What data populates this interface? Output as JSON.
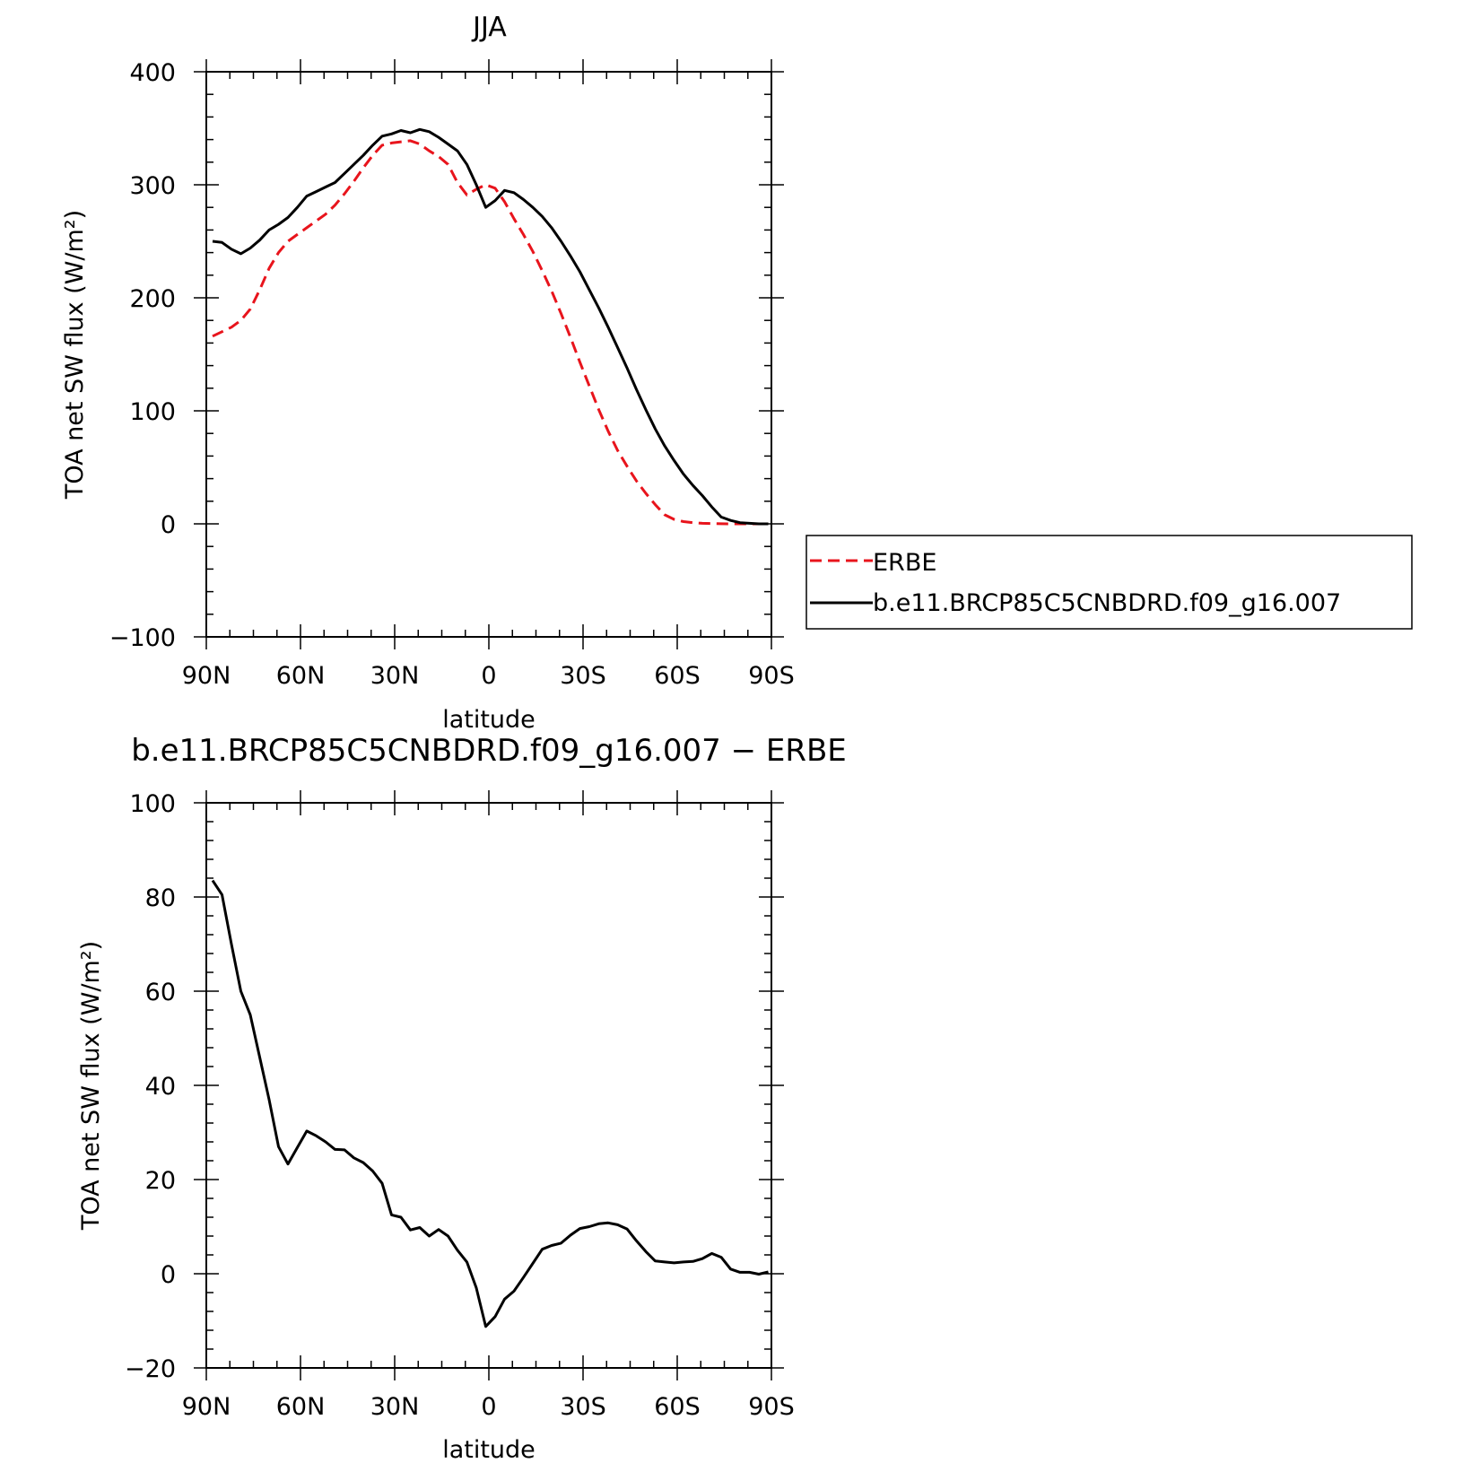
{
  "chart_data": [
    {
      "type": "line",
      "title": "JJA",
      "xlabel": "latitude",
      "ylabel": "TOA net SW flux (W/m²)",
      "x_ticks": [
        {
          "value": -90,
          "label": "90N"
        },
        {
          "value": -60,
          "label": "60N"
        },
        {
          "value": -30,
          "label": "30N"
        },
        {
          "value": 0,
          "label": "0"
        },
        {
          "value": 30,
          "label": "30S"
        },
        {
          "value": 60,
          "label": "60S"
        },
        {
          "value": 90,
          "label": "90S"
        }
      ],
      "xlim": [
        -90,
        90
      ],
      "ylim": [
        -100,
        400
      ],
      "y_ticks": [
        -100,
        0,
        100,
        200,
        300,
        400
      ],
      "grid": false,
      "legend": {
        "placement": "right",
        "entries": [
          {
            "name": "ERBE",
            "color": "#e8141c",
            "dash": true
          },
          {
            "name": "b.e11.BRCP85C5CNBDRD.f09_g16.007",
            "color": "#000000",
            "dash": false
          }
        ]
      },
      "x": [
        -88,
        -85,
        -82,
        -79,
        -76,
        -73,
        -70,
        -67,
        -64,
        -61,
        -58,
        -55,
        -52,
        -49,
        -46,
        -43,
        -40,
        -37,
        -34,
        -31,
        -28,
        -25,
        -22,
        -19,
        -16,
        -13,
        -10,
        -7,
        -4,
        -1,
        2,
        5,
        8,
        11,
        14,
        17,
        20,
        23,
        26,
        29,
        32,
        35,
        38,
        41,
        44,
        47,
        50,
        53,
        56,
        59,
        62,
        65,
        68,
        71,
        74,
        77,
        80,
        83,
        86,
        89
      ],
      "series": [
        {
          "name": "ERBE",
          "color": "#e8141c",
          "dash": true,
          "values": [
            166,
            170,
            174,
            180,
            190,
            207,
            226,
            240,
            250,
            256,
            262,
            268,
            274,
            282,
            292,
            303,
            315,
            326,
            335,
            337,
            338,
            339,
            336,
            330,
            325,
            318,
            302,
            291,
            296,
            300,
            297,
            285,
            270,
            256,
            241,
            224,
            206,
            186,
            165,
            143,
            122,
            101,
            82,
            65,
            51,
            38,
            27,
            17,
            8,
            4,
            2,
            1,
            0.5,
            0.3,
            0.1,
            0,
            0,
            0,
            0,
            0
          ]
        },
        {
          "name": "b.e11.BRCP85C5CNBDRD.f09_g16.007",
          "color": "#000000",
          "dash": false,
          "values": [
            250,
            249,
            243,
            239,
            244,
            251,
            260,
            265,
            271,
            280,
            290,
            294,
            298,
            302,
            310,
            318,
            326,
            335,
            343,
            345,
            348,
            346,
            349,
            347,
            342,
            336,
            330,
            318,
            300,
            280,
            286,
            295,
            293,
            287,
            280,
            272,
            262,
            250,
            237,
            223,
            207,
            191,
            174,
            156,
            138,
            119,
            101,
            84,
            69,
            56,
            44,
            34,
            25,
            15,
            6,
            3,
            1,
            0.5,
            0,
            0
          ]
        }
      ]
    },
    {
      "type": "line",
      "title": "b.e11.BRCP85C5CNBDRD.f09_g16.007 − ERBE",
      "xlabel": "latitude",
      "ylabel": "TOA net SW flux (W/m²)",
      "x_ticks": [
        {
          "value": -90,
          "label": "90N"
        },
        {
          "value": -60,
          "label": "60N"
        },
        {
          "value": -30,
          "label": "30N"
        },
        {
          "value": 0,
          "label": "0"
        },
        {
          "value": 30,
          "label": "30S"
        },
        {
          "value": 60,
          "label": "60S"
        },
        {
          "value": 90,
          "label": "90S"
        }
      ],
      "xlim": [
        -90,
        90
      ],
      "ylim": [
        -20,
        100
      ],
      "y_ticks": [
        -20,
        0,
        20,
        40,
        60,
        80,
        100
      ],
      "grid": false,
      "x": [
        -88,
        -85,
        -82,
        -79,
        -76,
        -73,
        -70,
        -67,
        -64,
        -61,
        -58,
        -55,
        -52,
        -49,
        -46,
        -43,
        -40,
        -37,
        -34,
        -31,
        -28,
        -25,
        -22,
        -19,
        -16,
        -13,
        -10,
        -7,
        -4,
        -1,
        2,
        5,
        8,
        11,
        14,
        17,
        20,
        23,
        26,
        29,
        32,
        35,
        38,
        41,
        44,
        47,
        50,
        53,
        56,
        59,
        62,
        65,
        68,
        71,
        74,
        77,
        80,
        83,
        86,
        89
      ],
      "series": [
        {
          "name": "",
          "color": "#000000",
          "dash": false,
          "values": [
            83.5,
            80.5,
            70,
            60,
            55,
            46,
            37,
            27,
            23.3,
            26.8,
            30.3,
            29.3,
            28,
            26.4,
            26.3,
            24.6,
            23.6,
            21.8,
            19.2,
            12.5,
            12,
            9.3,
            9.8,
            8,
            9.4,
            8,
            5,
            2.5,
            -3,
            -11.2,
            -9.1,
            -5.4,
            -3.7,
            -0.8,
            2.2,
            5.2,
            6,
            6.5,
            8.2,
            9.6,
            10,
            10.6,
            10.8,
            10.4,
            9.5,
            7,
            4.7,
            2.7,
            2.5,
            2.3,
            2.5,
            2.6,
            3.2,
            4.3,
            3.5,
            1,
            0.3,
            0.3,
            -0.1,
            0.4
          ]
        }
      ]
    }
  ]
}
